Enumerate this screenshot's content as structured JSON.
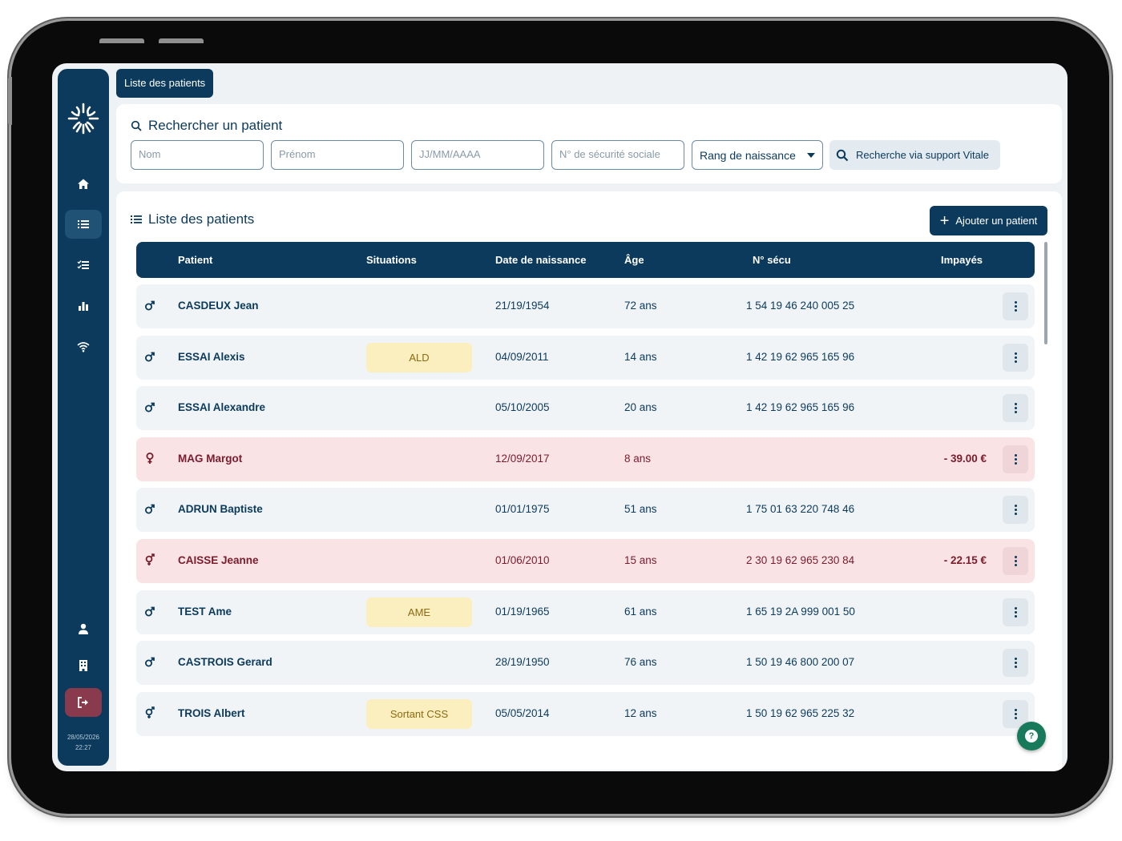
{
  "tab": {
    "label": "Liste des patients"
  },
  "sidebar": {
    "logo_icon": "sun-burst-logo",
    "items": [
      {
        "icon": "home-icon",
        "active": false
      },
      {
        "icon": "list-icon",
        "active": true
      },
      {
        "icon": "checklist-icon",
        "active": false
      },
      {
        "icon": "bar-chart-icon",
        "active": false
      },
      {
        "icon": "wifi-icon",
        "active": false
      },
      {
        "icon": "user-icon",
        "active": false
      },
      {
        "icon": "building-icon",
        "active": false
      },
      {
        "icon": "logout-icon",
        "active": false
      }
    ],
    "date": "28/05/2026",
    "time": "22:27"
  },
  "search": {
    "title": "Rechercher un patient",
    "nom_placeholder": "Nom",
    "prenom_placeholder": "Prénom",
    "dob_placeholder": "JJ/MM/AAAA",
    "secu_placeholder": "N° de sécurité sociale",
    "rank_select": "Rang de naissance",
    "vitale_button": "Recherche via support Vitale"
  },
  "list": {
    "title": "Liste des patients",
    "add_button": "Ajouter un patient",
    "columns": {
      "patient": "Patient",
      "situations": "Situations",
      "dob": "Date de naissance",
      "age": "Âge",
      "secu": "N° sécu",
      "impayes": "Impayés"
    },
    "rows": [
      {
        "sex": "male",
        "name": "CASDEUX Jean",
        "situation": "",
        "dob": "21/19/1954",
        "age": "72 ans",
        "secu": "1 54 19 46 240 005 25",
        "impaye": ""
      },
      {
        "sex": "male",
        "name": "ESSAI Alexis",
        "situation": "ALD",
        "dob": "04/09/2011",
        "age": "14 ans",
        "secu": "1 42 19 62 965 165 96",
        "impaye": ""
      },
      {
        "sex": "male",
        "name": "ESSAI Alexandre",
        "situation": "",
        "dob": "05/10/2005",
        "age": "20 ans",
        "secu": "1 42 19 62 965 165 96",
        "impaye": ""
      },
      {
        "sex": "female",
        "name": "MAG Margot",
        "situation": "",
        "dob": "12/09/2017",
        "age": "8 ans",
        "secu": "",
        "impaye": "- 39.00 €"
      },
      {
        "sex": "male",
        "name": "ADRUN Baptiste",
        "situation": "",
        "dob": "01/01/1975",
        "age": "51 ans",
        "secu": "1 75 01 63 220 748 46",
        "impaye": ""
      },
      {
        "sex": "other",
        "name": "CAISSE Jeanne",
        "situation": "",
        "dob": "01/06/2010",
        "age": "15 ans",
        "secu": "2 30 19 62 965 230 84",
        "impaye": "- 22.15 €"
      },
      {
        "sex": "male",
        "name": "TEST Ame",
        "situation": "AME",
        "dob": "01/19/1965",
        "age": "61 ans",
        "secu": "1 65 19 2A 999 001 50",
        "impaye": ""
      },
      {
        "sex": "male",
        "name": "CASTROIS Gerard",
        "situation": "",
        "dob": "28/19/1950",
        "age": "76 ans",
        "secu": "1 50 19 46 800 200 07",
        "impaye": ""
      },
      {
        "sex": "other",
        "name": "TROIS Albert",
        "situation": "Sortant CSS",
        "dob": "05/05/2014",
        "age": "12 ans",
        "secu": "1 50 19 62 965 225 32",
        "impaye": ""
      }
    ]
  },
  "help": {
    "icon": "help-icon",
    "label": "?"
  },
  "colors": {
    "primary": "#0b3a5c",
    "debt_row": "#f9e3e5",
    "badge": "#fbefbf",
    "help": "#177a5a"
  }
}
